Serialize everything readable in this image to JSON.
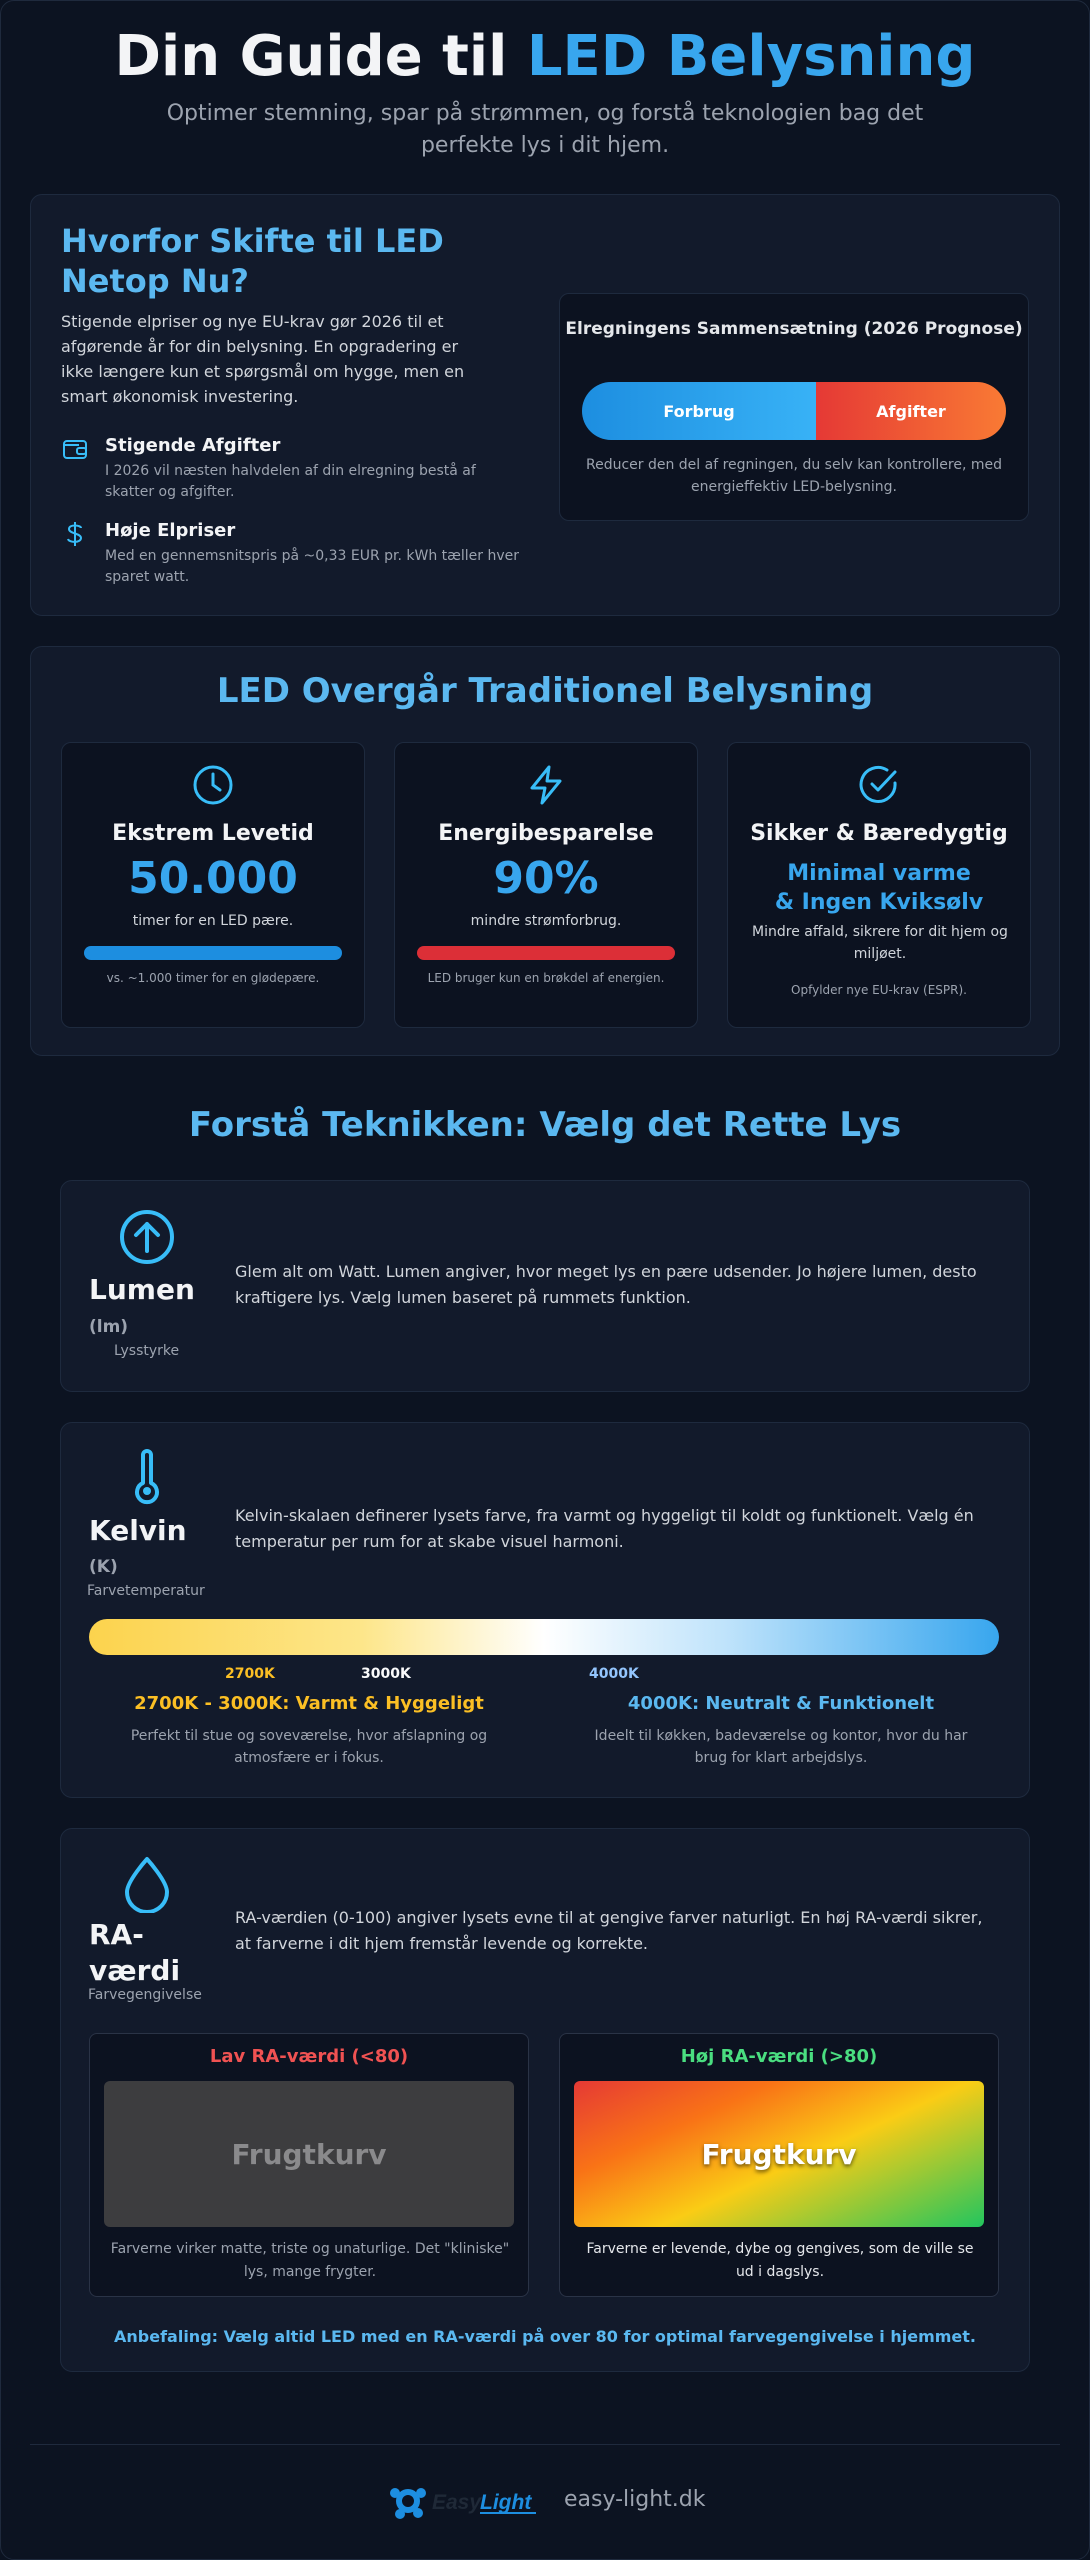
{
  "header": {
    "title_part1": "Din Guide til ",
    "title_part2": "LED Belysning",
    "subtitle": "Optimer stemning, spar på strømmen, og forstå teknologien bag det perfekte lys i dit hjem."
  },
  "why": {
    "title": "Hvorfor Skifte til LED Netop Nu?",
    "body": "Stigende elpriser og nye EU-krav gør 2026 til et afgørende år for din belysning. En opgradering er ikke længere kun et spørgsmål om hygge, men en smart økonomisk investering.",
    "features": [
      {
        "icon": "wallet-icon",
        "title": "Stigende Afgifter",
        "desc": "I 2026 vil næsten halvdelen af din elregning bestå af skatter og afgifter."
      },
      {
        "icon": "dollar-icon",
        "title": "Høje Elpriser",
        "desc": "Med en gennemsnitspris på ~0,33 EUR pr. kWh tæller hver sparet watt."
      }
    ],
    "bill": {
      "title": "Elregningens Sammensætning (2026 Prognose)",
      "segment_1": "Forbrug",
      "segment_2": "Afgifter",
      "note": "Reducer den del af regningen, du selv kan kontrollere, med energieffektiv LED-belysning."
    }
  },
  "advantages": {
    "title": "LED Overgår Traditionel Belysning",
    "cards": [
      {
        "icon": "clock-icon",
        "title": "Ekstrem Levetid",
        "value": "50.000",
        "label": "timer for en LED pære.",
        "note": "vs. ~1.000 timer for en glødepære.",
        "bar_color": "#1d8ee0"
      },
      {
        "icon": "lightning-icon",
        "title": "Energibesparelse",
        "value": "90%",
        "label": "mindre strømforbrug.",
        "note": "LED bruger kun en brøkdel af energien.",
        "bar_color": "#dc2f37"
      },
      {
        "icon": "check-circle-icon",
        "title": "Sikker & Bæredygtig",
        "value_line1": "Minimal varme",
        "value_line2": "& Ingen Kviksølv",
        "label": "Mindre affald, sikrere for dit hjem og miljøet.",
        "note": "Opfylder nye EU-krav (ESPR)."
      }
    ]
  },
  "technique": {
    "title": "Forstå Teknikken: Vælg det Rette Lys",
    "lumen": {
      "icon": "arrow-up-circle-icon",
      "name": "Lumen",
      "unit": "(lm)",
      "sub": "Lysstyrke",
      "desc": "Glem alt om Watt. Lumen angiver, hvor meget lys en pære udsender. Jo højere lumen, desto kraftigere lys. Vælg lumen baseret på rummets funktion."
    },
    "kelvin": {
      "icon": "thermometer-icon",
      "name": "Kelvin",
      "unit": "(K)",
      "sub": "Farvetemperatur",
      "desc": "Kelvin-skalaen definerer lysets farve, fra varmt og hyggeligt til koldt og funktionelt. Vælg én temperatur per rum for at skabe visuel harmoni.",
      "ticks": [
        "2700K",
        "3000K",
        "4000K"
      ],
      "warm_title": "2700K - 3000K: Varmt & Hyggeligt",
      "warm_desc": "Perfekt til stue og soveværelse, hvor afslapning og atmosfære er i fokus.",
      "cool_title": "4000K: Neutralt & Funktionelt",
      "cool_desc": "Ideelt til køkken, badeværelse og kontor, hvor du har brug for klart arbejdslys."
    },
    "ra": {
      "icon": "droplet-icon",
      "name_line1": "RA-",
      "name_line2": "værdi",
      "sub": "Farvegengivelse",
      "desc": "RA-værdien (0-100) angiver lysets evne til at gengive farver naturligt. En høj RA-værdi sikrer, at farverne i dit hjem fremstår levende og korrekte.",
      "low_title": "Lav RA-værdi (<80)",
      "low_image_text": "Frugtkurv",
      "low_desc": "Farverne virker matte, triste og unaturlige. Det \"kliniske\" lys, mange frygter.",
      "high_title": "Høj RA-værdi (>80)",
      "high_image_text": "Frugtkurv",
      "high_desc": "Farverne er levende, dybe og gengives, som de ville se ud i dagslys.",
      "recommendation": "Anbefaling: Vælg altid LED med en RA-værdi på over 80 for optimal farvegengivelse i hjemmet."
    }
  },
  "footer": {
    "logo_text_1": "Easy",
    "logo_text_2": "Light",
    "domain": "easy-light.dk"
  }
}
